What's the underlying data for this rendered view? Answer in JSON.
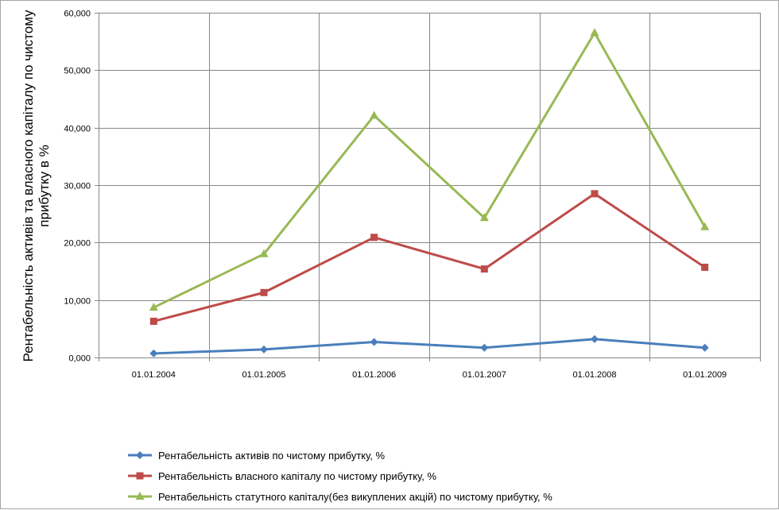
{
  "chart_data": {
    "type": "line",
    "title": "",
    "xlabel": "",
    "ylabel": "Рентабельність активів та власного капіталу по чистому прибутку в %",
    "ylabel_lines": [
      "Рентабельність активів та власного капіталу по чистому",
      "прибутку в %"
    ],
    "categories": [
      "01.01.2004",
      "01.01.2005",
      "01.01.2006",
      "01.01.2007",
      "01.01.2008",
      "01.01.2009"
    ],
    "ylim": [
      0,
      60000
    ],
    "yticks": [
      0,
      10000,
      20000,
      30000,
      40000,
      50000,
      60000
    ],
    "ytick_labels": [
      "0,000",
      "10,000",
      "20,000",
      "30,000",
      "40,000",
      "50,000",
      "60,000"
    ],
    "grid": true,
    "legend_position": "bottom",
    "series": [
      {
        "name": "Рентабельність активів по чистому прибутку, %",
        "color": "#4a7ebb",
        "marker": "diamond",
        "values": [
          700,
          1400,
          2700,
          1700,
          3200,
          1700
        ]
      },
      {
        "name": "Рентабельність власного капіталу по чистому прибутку, %",
        "color": "#be4b48",
        "marker": "square",
        "values": [
          6300,
          11300,
          20900,
          15400,
          28500,
          15700
        ]
      },
      {
        "name": "Рентабельність статутного капіталу(без викуплених акцій) по чистому прибутку, %",
        "color": "#98b954",
        "marker": "triangle",
        "values": [
          8700,
          18000,
          42100,
          24300,
          56500,
          22700
        ]
      }
    ]
  }
}
